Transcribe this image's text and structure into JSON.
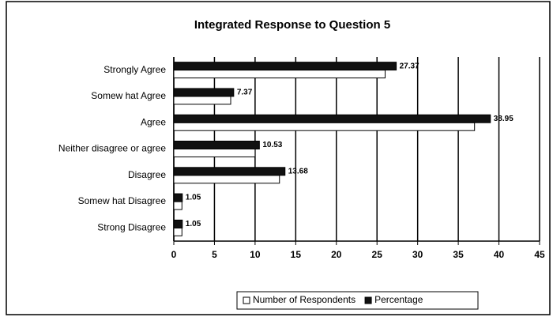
{
  "chart_data": {
    "type": "hbar",
    "title": "Integrated Response to Question 5",
    "categories": [
      "Strongly Agree",
      "Somew hat Agree",
      "Agree",
      "Neither disagree or agree",
      "Disagree",
      "Somew hat Disagree",
      "Strong Disagree"
    ],
    "series": [
      {
        "name": "Number of Respondents",
        "color": "#ffffff",
        "values": [
          26,
          7,
          37,
          10,
          13,
          1,
          1
        ]
      },
      {
        "name": "Percentage",
        "color": "#111111",
        "values": [
          27.37,
          7.37,
          38.95,
          10.53,
          13.68,
          1.05,
          1.05
        ]
      }
    ],
    "xlim": [
      0,
      45
    ],
    "xticks": [
      0,
      5,
      10,
      15,
      20,
      25,
      30,
      35,
      40,
      45
    ],
    "grid": true,
    "legend": "bottom"
  }
}
